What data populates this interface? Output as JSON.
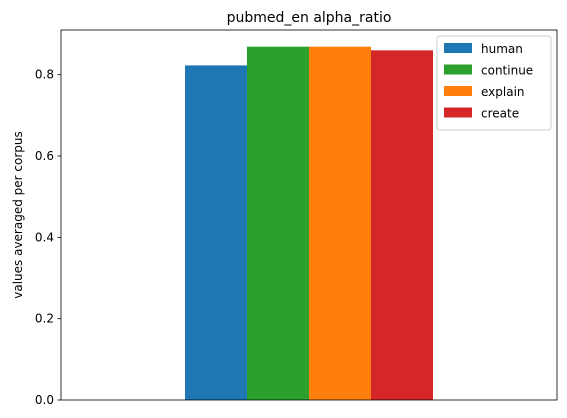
{
  "chart_data": {
    "type": "bar",
    "title": "pubmed_en alpha_ratio",
    "xlabel": "",
    "ylabel": "values averaged per corpus",
    "ylim": [
      0,
      0.91
    ],
    "yticks": [
      0.0,
      0.2,
      0.4,
      0.6,
      0.8
    ],
    "ytick_labels": [
      "0.0",
      "0.2",
      "0.4",
      "0.6",
      "0.8"
    ],
    "grid": false,
    "legend_position": "top-right",
    "series": [
      {
        "name": "human",
        "value": 0.823,
        "color": "#1f77b4"
      },
      {
        "name": "continue",
        "value": 0.869,
        "color": "#2ca02c"
      },
      {
        "name": "explain",
        "value": 0.869,
        "color": "#ff7f0e"
      },
      {
        "name": "create",
        "value": 0.86,
        "color": "#d62728"
      }
    ]
  }
}
